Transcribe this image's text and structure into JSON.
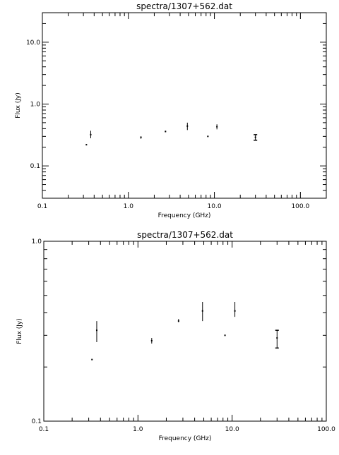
{
  "chart_data": [
    {
      "type": "scatter",
      "title": "spectra/1307+562.dat",
      "xlabel": "Frequency (GHz)",
      "ylabel": "Flux (Jy)",
      "xscale": "log",
      "yscale": "log",
      "xlim": [
        0.1,
        200
      ],
      "ylim": [
        0.03,
        30
      ],
      "xticks": [
        0.1,
        1.0,
        10.0,
        100.0
      ],
      "xtick_labels": [
        "0.1",
        "1.0",
        "10.0",
        "100.0"
      ],
      "yticks": [
        0.1,
        1.0,
        10.0
      ],
      "ytick_labels": [
        "0.1",
        "1.0",
        "10.0"
      ],
      "grid": false,
      "points": [
        {
          "x": 0.325,
          "y": 0.22,
          "lo": 0.22,
          "hi": 0.22
        },
        {
          "x": 0.365,
          "y": 0.32,
          "lo": 0.28,
          "hi": 0.37
        },
        {
          "x": 1.4,
          "y": 0.29,
          "lo": 0.275,
          "hi": 0.3
        },
        {
          "x": 2.7,
          "y": 0.36,
          "lo": 0.35,
          "hi": 0.37
        },
        {
          "x": 4.85,
          "y": 0.44,
          "lo": 0.38,
          "hi": 0.5
        },
        {
          "x": 8.4,
          "y": 0.3,
          "lo": 0.3,
          "hi": 0.3
        },
        {
          "x": 10.7,
          "y": 0.43,
          "lo": 0.39,
          "hi": 0.47
        },
        {
          "x": 30.0,
          "y": 0.29,
          "lo": 0.26,
          "hi": 0.32
        }
      ]
    },
    {
      "type": "scatter",
      "title": "spectra/1307+562.dat",
      "xlabel": "Frequency (GHz)",
      "ylabel": "Flux (Jy)",
      "xscale": "log",
      "yscale": "log",
      "xlim": [
        0.1,
        100
      ],
      "ylim": [
        0.1,
        1.0
      ],
      "xticks": [
        0.1,
        1.0,
        10.0,
        100.0
      ],
      "xtick_labels": [
        "0.1",
        "1.0",
        "10.0",
        "100.0"
      ],
      "yticks": [
        0.1,
        1.0
      ],
      "ytick_labels": [
        "0.1",
        "1.0"
      ],
      "grid": false,
      "points": [
        {
          "x": 0.325,
          "y": 0.22,
          "lo": 0.22,
          "hi": 0.22
        },
        {
          "x": 0.365,
          "y": 0.32,
          "lo": 0.275,
          "hi": 0.36
        },
        {
          "x": 1.4,
          "y": 0.28,
          "lo": 0.27,
          "hi": 0.29
        },
        {
          "x": 2.7,
          "y": 0.36,
          "lo": 0.355,
          "hi": 0.37
        },
        {
          "x": 4.85,
          "y": 0.41,
          "lo": 0.36,
          "hi": 0.46
        },
        {
          "x": 8.4,
          "y": 0.3,
          "lo": 0.3,
          "hi": 0.3
        },
        {
          "x": 10.7,
          "y": 0.41,
          "lo": 0.38,
          "hi": 0.46
        },
        {
          "x": 30.0,
          "y": 0.29,
          "lo": 0.255,
          "hi": 0.32
        }
      ]
    }
  ]
}
